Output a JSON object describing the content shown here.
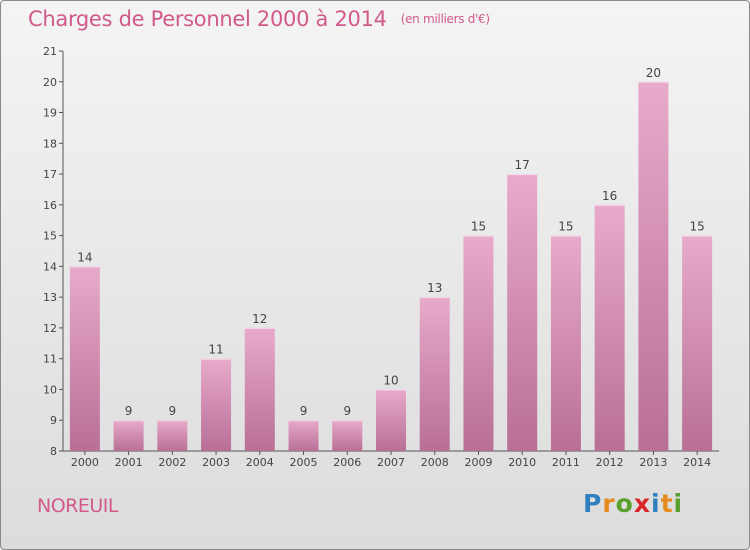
{
  "header": {
    "title": "Charges de Personnel 2000 à 2014",
    "subtitle": "(en milliers d'€)"
  },
  "footer": {
    "place": "NOREUIL",
    "logo_letters": [
      "P",
      "r",
      "o",
      "x",
      "i",
      "t",
      "i"
    ],
    "logo_colors": [
      "#2f7fc1",
      "#e68a1e",
      "#5aa02c",
      "#d8262a",
      "#2f7fc1",
      "#e68a1e",
      "#5aa02c"
    ]
  },
  "colors": {
    "bar_top": "#e8aacb",
    "bar_bottom": "#b86f96",
    "title": "#d15a8b"
  },
  "chart_data": {
    "type": "bar",
    "categories": [
      "2000",
      "2001",
      "2002",
      "2003",
      "2004",
      "2005",
      "2006",
      "2007",
      "2008",
      "2009",
      "2010",
      "2011",
      "2012",
      "2013",
      "2014"
    ],
    "values": [
      14,
      9,
      9,
      11,
      12,
      9,
      9,
      10,
      13,
      15,
      17,
      15,
      16,
      20,
      15
    ],
    "ylim": [
      8,
      21
    ],
    "yticks": [
      8,
      9,
      10,
      11,
      12,
      13,
      14,
      15,
      16,
      17,
      18,
      19,
      20,
      21
    ],
    "grid": false,
    "xlabel": "",
    "ylabel": ""
  }
}
